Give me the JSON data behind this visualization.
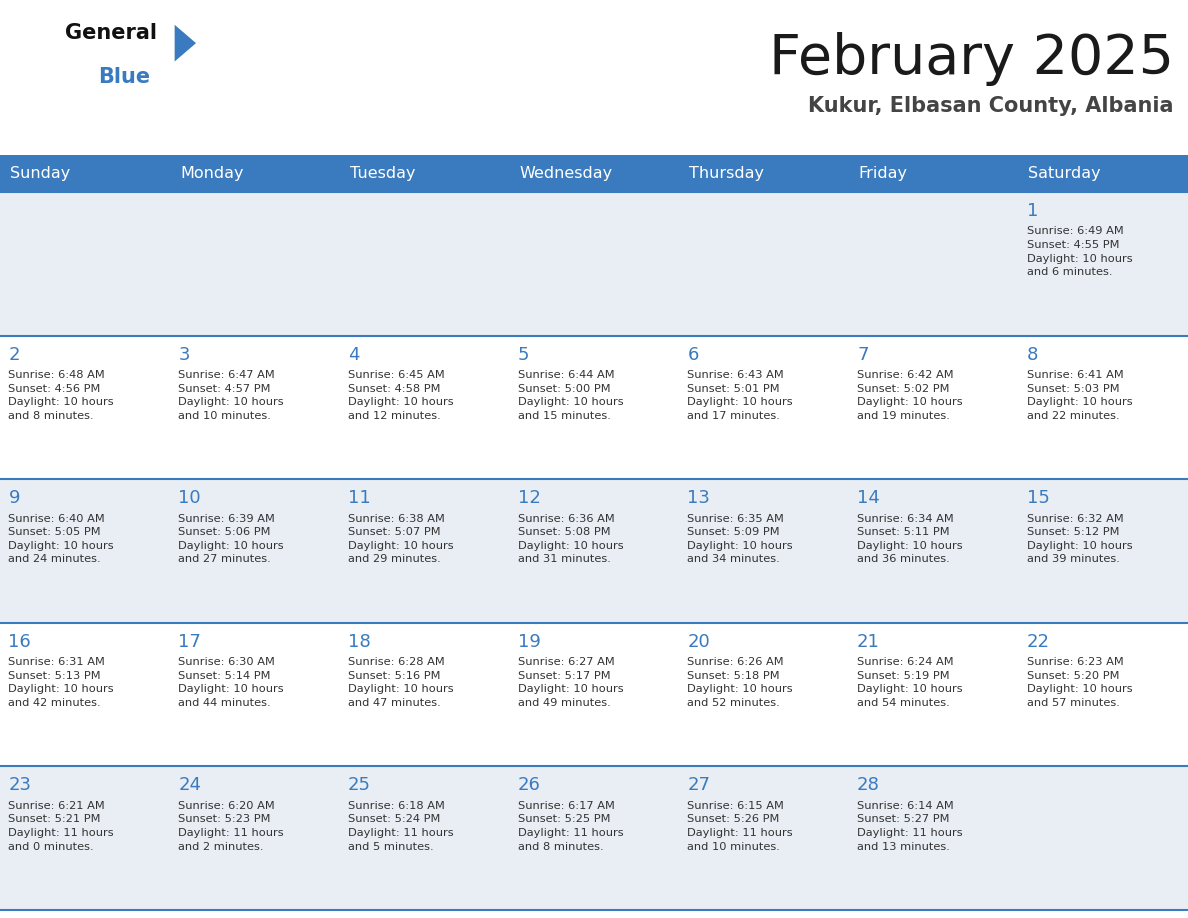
{
  "title": "February 2025",
  "subtitle": "Kukur, Elbasan County, Albania",
  "header_color": "#3a7bbf",
  "header_text_color": "#ffffff",
  "cell_bg_odd": "#e8eef4",
  "cell_bg_even": "#ffffff",
  "day_number_color": "#3a7bbf",
  "text_color": "#333333",
  "line_color": "#3a7bbf",
  "days_of_week": [
    "Sunday",
    "Monday",
    "Tuesday",
    "Wednesday",
    "Thursday",
    "Friday",
    "Saturday"
  ],
  "weeks": [
    [
      {
        "day": null,
        "info": null
      },
      {
        "day": null,
        "info": null
      },
      {
        "day": null,
        "info": null
      },
      {
        "day": null,
        "info": null
      },
      {
        "day": null,
        "info": null
      },
      {
        "day": null,
        "info": null
      },
      {
        "day": 1,
        "info": "Sunrise: 6:49 AM\nSunset: 4:55 PM\nDaylight: 10 hours\nand 6 minutes."
      }
    ],
    [
      {
        "day": 2,
        "info": "Sunrise: 6:48 AM\nSunset: 4:56 PM\nDaylight: 10 hours\nand 8 minutes."
      },
      {
        "day": 3,
        "info": "Sunrise: 6:47 AM\nSunset: 4:57 PM\nDaylight: 10 hours\nand 10 minutes."
      },
      {
        "day": 4,
        "info": "Sunrise: 6:45 AM\nSunset: 4:58 PM\nDaylight: 10 hours\nand 12 minutes."
      },
      {
        "day": 5,
        "info": "Sunrise: 6:44 AM\nSunset: 5:00 PM\nDaylight: 10 hours\nand 15 minutes."
      },
      {
        "day": 6,
        "info": "Sunrise: 6:43 AM\nSunset: 5:01 PM\nDaylight: 10 hours\nand 17 minutes."
      },
      {
        "day": 7,
        "info": "Sunrise: 6:42 AM\nSunset: 5:02 PM\nDaylight: 10 hours\nand 19 minutes."
      },
      {
        "day": 8,
        "info": "Sunrise: 6:41 AM\nSunset: 5:03 PM\nDaylight: 10 hours\nand 22 minutes."
      }
    ],
    [
      {
        "day": 9,
        "info": "Sunrise: 6:40 AM\nSunset: 5:05 PM\nDaylight: 10 hours\nand 24 minutes."
      },
      {
        "day": 10,
        "info": "Sunrise: 6:39 AM\nSunset: 5:06 PM\nDaylight: 10 hours\nand 27 minutes."
      },
      {
        "day": 11,
        "info": "Sunrise: 6:38 AM\nSunset: 5:07 PM\nDaylight: 10 hours\nand 29 minutes."
      },
      {
        "day": 12,
        "info": "Sunrise: 6:36 AM\nSunset: 5:08 PM\nDaylight: 10 hours\nand 31 minutes."
      },
      {
        "day": 13,
        "info": "Sunrise: 6:35 AM\nSunset: 5:09 PM\nDaylight: 10 hours\nand 34 minutes."
      },
      {
        "day": 14,
        "info": "Sunrise: 6:34 AM\nSunset: 5:11 PM\nDaylight: 10 hours\nand 36 minutes."
      },
      {
        "day": 15,
        "info": "Sunrise: 6:32 AM\nSunset: 5:12 PM\nDaylight: 10 hours\nand 39 minutes."
      }
    ],
    [
      {
        "day": 16,
        "info": "Sunrise: 6:31 AM\nSunset: 5:13 PM\nDaylight: 10 hours\nand 42 minutes."
      },
      {
        "day": 17,
        "info": "Sunrise: 6:30 AM\nSunset: 5:14 PM\nDaylight: 10 hours\nand 44 minutes."
      },
      {
        "day": 18,
        "info": "Sunrise: 6:28 AM\nSunset: 5:16 PM\nDaylight: 10 hours\nand 47 minutes."
      },
      {
        "day": 19,
        "info": "Sunrise: 6:27 AM\nSunset: 5:17 PM\nDaylight: 10 hours\nand 49 minutes."
      },
      {
        "day": 20,
        "info": "Sunrise: 6:26 AM\nSunset: 5:18 PM\nDaylight: 10 hours\nand 52 minutes."
      },
      {
        "day": 21,
        "info": "Sunrise: 6:24 AM\nSunset: 5:19 PM\nDaylight: 10 hours\nand 54 minutes."
      },
      {
        "day": 22,
        "info": "Sunrise: 6:23 AM\nSunset: 5:20 PM\nDaylight: 10 hours\nand 57 minutes."
      }
    ],
    [
      {
        "day": 23,
        "info": "Sunrise: 6:21 AM\nSunset: 5:21 PM\nDaylight: 11 hours\nand 0 minutes."
      },
      {
        "day": 24,
        "info": "Sunrise: 6:20 AM\nSunset: 5:23 PM\nDaylight: 11 hours\nand 2 minutes."
      },
      {
        "day": 25,
        "info": "Sunrise: 6:18 AM\nSunset: 5:24 PM\nDaylight: 11 hours\nand 5 minutes."
      },
      {
        "day": 26,
        "info": "Sunrise: 6:17 AM\nSunset: 5:25 PM\nDaylight: 11 hours\nand 8 minutes."
      },
      {
        "day": 27,
        "info": "Sunrise: 6:15 AM\nSunset: 5:26 PM\nDaylight: 11 hours\nand 10 minutes."
      },
      {
        "day": 28,
        "info": "Sunrise: 6:14 AM\nSunset: 5:27 PM\nDaylight: 11 hours\nand 13 minutes."
      },
      {
        "day": null,
        "info": null
      }
    ]
  ],
  "logo_general_color": "#111111",
  "logo_blue_color": "#3a7bbf",
  "logo_triangle_color": "#3a7bbf"
}
